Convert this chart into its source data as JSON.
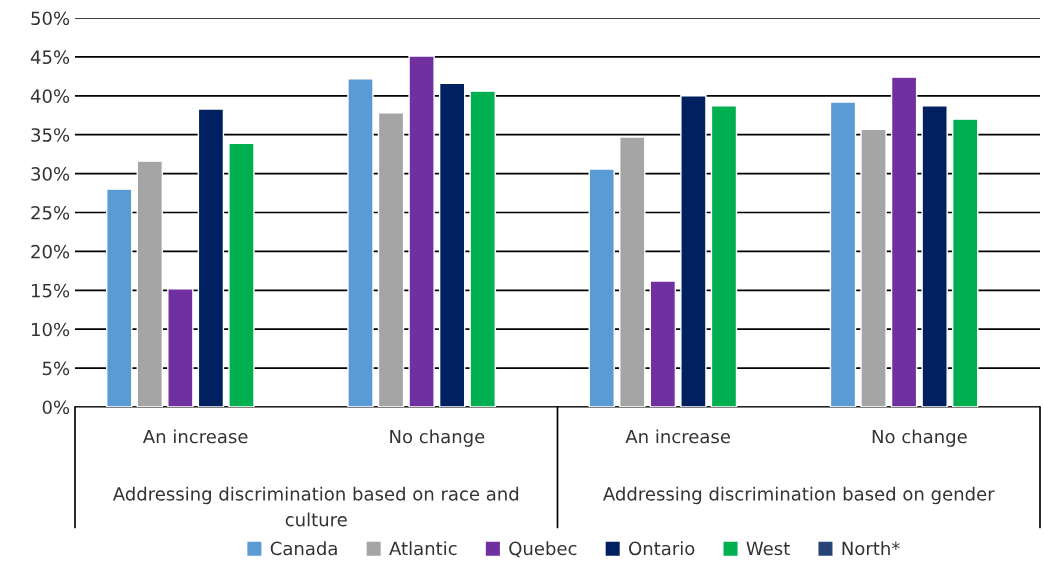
{
  "chart_data": {
    "type": "bar",
    "categories": [
      "An increase",
      "No change",
      "An increase",
      "No change"
    ],
    "series": [
      {
        "name": "Canada",
        "color": "#5b9bd5",
        "values": [
          28.0,
          42.2,
          30.6,
          39.2
        ]
      },
      {
        "name": "Atlantic",
        "color": "#a5a5a5",
        "values": [
          31.6,
          37.8,
          34.7,
          35.7
        ]
      },
      {
        "name": "Quebec",
        "color": "#7030a0",
        "values": [
          15.2,
          45.1,
          16.2,
          42.4
        ]
      },
      {
        "name": "Ontario",
        "color": "#002060",
        "values": [
          38.3,
          41.6,
          40.0,
          38.7
        ]
      },
      {
        "name": "West",
        "color": "#00b050",
        "values": [
          33.9,
          40.6,
          38.7,
          37.0
        ]
      },
      {
        "name": "North*",
        "color": "#264478",
        "values": [
          null,
          null,
          null,
          null
        ]
      }
    ],
    "annotations": [
      "Addressing discrimination based on race and culture",
      "Addressing discrimination based on gender"
    ],
    "ylim": [
      0,
      50
    ],
    "yticks": [
      {
        "value": 0,
        "label": "0%"
      },
      {
        "value": 5,
        "label": "5%"
      },
      {
        "value": 10,
        "label": "10%"
      },
      {
        "value": 15,
        "label": "15%"
      },
      {
        "value": 20,
        "label": "20%"
      },
      {
        "value": 25,
        "label": "25%"
      },
      {
        "value": 30,
        "label": "30%"
      },
      {
        "value": 35,
        "label": "35%"
      },
      {
        "value": 40,
        "label": "40%"
      },
      {
        "value": 45,
        "label": "45%"
      },
      {
        "value": 50,
        "label": "50%"
      }
    ],
    "grid": "y",
    "legend": "bottom"
  }
}
